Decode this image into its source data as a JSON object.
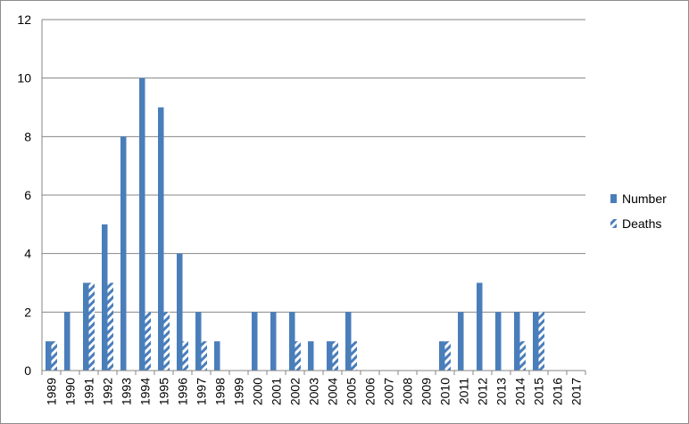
{
  "chart_data": {
    "type": "bar",
    "categories": [
      "1989",
      "1990",
      "1991",
      "1992",
      "1993",
      "1994",
      "1995",
      "1996",
      "1997",
      "1998",
      "1999",
      "2000",
      "2001",
      "2002",
      "2003",
      "2004",
      "2005",
      "2006",
      "2007",
      "2008",
      "2009",
      "2010",
      "2011",
      "2012",
      "2013",
      "2014",
      "2015",
      "2016",
      "2017"
    ],
    "series": [
      {
        "name": "Number",
        "values": [
          1,
          2,
          3,
          5,
          8,
          10,
          9,
          4,
          2,
          1,
          0,
          2,
          2,
          2,
          1,
          1,
          2,
          0,
          0,
          0,
          0,
          1,
          2,
          3,
          2,
          2,
          2,
          0,
          0
        ],
        "color": "#4a7ebb",
        "pattern": "solid"
      },
      {
        "name": "Deaths",
        "values": [
          1,
          0,
          3,
          3,
          0,
          2,
          2,
          1,
          1,
          0,
          0,
          0,
          0,
          1,
          0,
          1,
          1,
          0,
          0,
          0,
          0,
          1,
          0,
          0,
          0,
          1,
          2,
          0,
          0
        ],
        "color": "#4a7ebb",
        "pattern": "diagonal-stripes"
      }
    ],
    "yticks": [
      "0",
      "2",
      "4",
      "6",
      "8",
      "10",
      "12"
    ],
    "ylim": [
      0,
      12
    ],
    "grid": true,
    "legend_position": "right",
    "title": "",
    "xlabel": "",
    "ylabel": ""
  }
}
